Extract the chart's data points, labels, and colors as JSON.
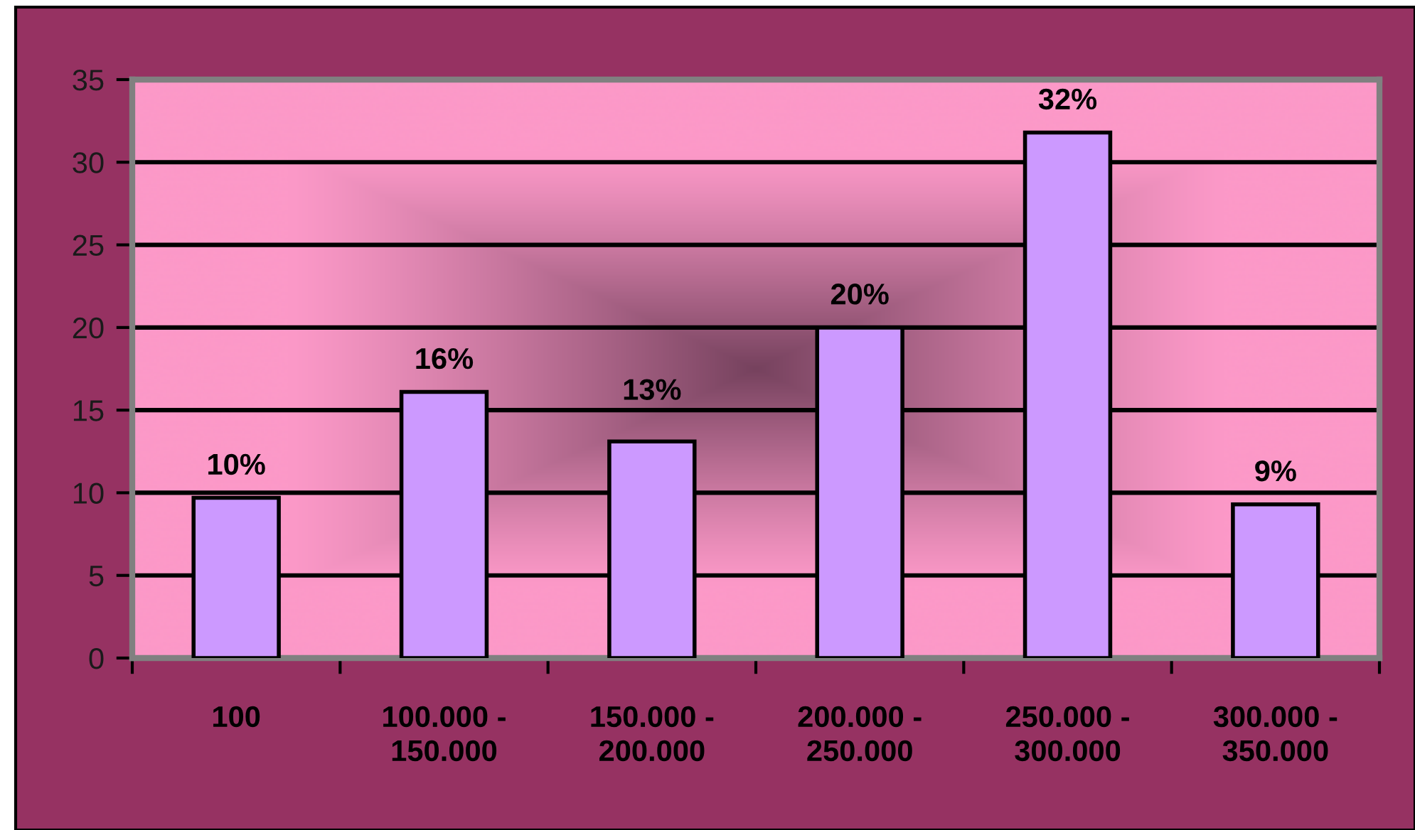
{
  "chart_data": {
    "type": "bar",
    "categories": [
      "100",
      "100.000 -\n150.000",
      "150.000 -\n200.000",
      "200.000 -\n250.000",
      "250.000 -\n300.000",
      "300.000 -\n350.000"
    ],
    "values": [
      9.7,
      16.1,
      13.1,
      20,
      31.8,
      9.3
    ],
    "value_labels": [
      "10%",
      "16%",
      "13%",
      "20%",
      "32%",
      "9%"
    ],
    "color": "#cc99ff",
    "ylim": [
      0,
      35
    ],
    "yticks": [
      0,
      5,
      10,
      15,
      20,
      25,
      30,
      35
    ],
    "grid": "y"
  }
}
